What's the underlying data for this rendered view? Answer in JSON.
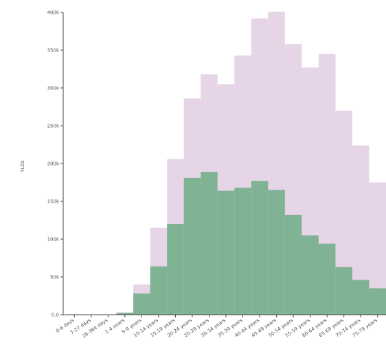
{
  "chart_data": {
    "type": "bar",
    "ylabel": "YLDs",
    "categories": [
      "0-6 days",
      "7-27 days",
      "28-364 days",
      "1-4 years",
      "5-9 years",
      "10-14 years",
      "15-19 years",
      "20-24 years",
      "25-29 years",
      "30-34 years",
      "35-39 years",
      "40-44 years",
      "45-49 years",
      "50-54 years",
      "55-59 years",
      "60-64 years",
      "65-69 years",
      "70-74 years",
      "75-79 years"
    ],
    "ylim": [
      0,
      400000
    ],
    "yticks": [
      {
        "value": 0,
        "label": "0.0"
      },
      {
        "value": 50000,
        "label": "50k"
      },
      {
        "value": 100000,
        "label": "100k"
      },
      {
        "value": 150000,
        "label": "150k"
      },
      {
        "value": 200000,
        "label": "200k"
      },
      {
        "value": 250000,
        "label": "250k"
      },
      {
        "value": 300000,
        "label": "300k"
      },
      {
        "value": 350000,
        "label": "350k"
      },
      {
        "value": 400000,
        "label": "400k"
      }
    ],
    "series": [
      {
        "color": "#7fb394",
        "values": [
          0,
          0,
          0,
          2500,
          28000,
          64000,
          120000,
          181000,
          189000,
          164000,
          168000,
          177000,
          165000,
          132000,
          105000,
          94000,
          63000,
          46000,
          35000
        ]
      },
      {
        "color": "#e6d5e6",
        "values": [
          0,
          0,
          0,
          3000,
          40000,
          115000,
          206000,
          286000,
          318000,
          305000,
          343000,
          392000,
          401000,
          358000,
          327000,
          345000,
          270000,
          224000,
          175000
        ]
      }
    ],
    "grid": false
  }
}
